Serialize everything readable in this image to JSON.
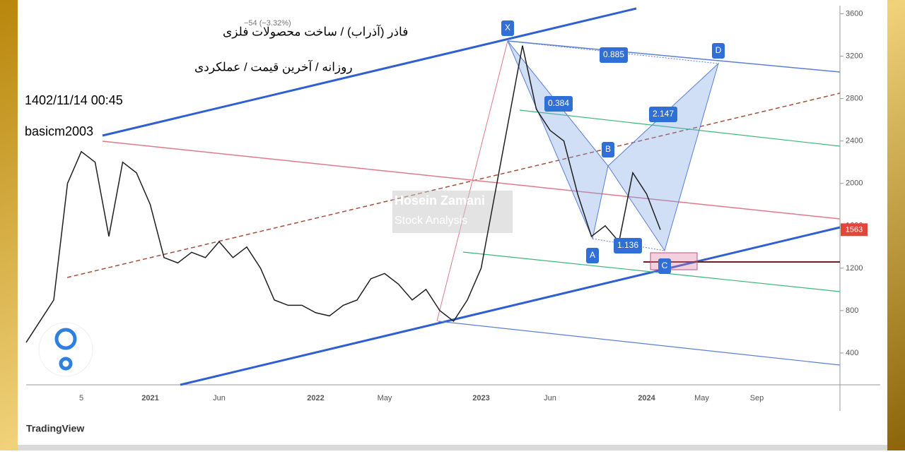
{
  "chart_data": {
    "type": "line",
    "title": "فاذر (آذراب) / ساخت محصولات فلزی",
    "subtitle": "روزانه / آخرین قیمت / عملکردی",
    "timestamp": "1402/11/14 00:45",
    "author": "basicm2003",
    "change": "−54 (−3.32%)",
    "watermark": [
      "Hosein Zamani",
      "Stock Analysis"
    ],
    "brand": "TradingView",
    "pattern_labels": [
      "X",
      "A",
      "B",
      "C",
      "D",
      "0.885",
      "0.384",
      "2.147",
      "1.136"
    ],
    "categories": [
      null,
      null,
      null,
      null,
      "5",
      null,
      null,
      null,
      null,
      "2021",
      null,
      null,
      null,
      null,
      "Jun",
      null,
      null,
      null,
      null,
      null,
      null,
      "2022",
      null,
      null,
      null,
      null,
      "May",
      null,
      null,
      null,
      null,
      null,
      null,
      "2023",
      null,
      null,
      null,
      null,
      "Jun",
      null,
      null,
      null,
      null,
      null,
      null,
      "2024",
      null,
      null,
      null,
      "May",
      null,
      null,
      null,
      "Sep",
      null,
      null,
      null,
      null,
      null,
      null
    ],
    "series": [
      {
        "name": "Close",
        "color": "#1f1f1f",
        "values": [
          500,
          700,
          900,
          2000,
          2300,
          2200,
          1500,
          2200,
          2100,
          1800,
          1300,
          1250,
          1350,
          1300,
          1450,
          1300,
          1400,
          1200,
          900,
          850,
          850,
          780,
          750,
          850,
          900,
          1100,
          1150,
          1050,
          900,
          1000,
          800,
          700,
          900,
          1200,
          1900,
          2600,
          3300,
          2700,
          2500,
          2400,
          1900,
          1500,
          1600,
          1450,
          2100,
          1900,
          1563,
          null,
          null,
          null,
          null,
          null,
          null,
          null,
          null,
          null,
          null,
          null,
          null,
          null
        ]
      }
    ],
    "last_value": 1563,
    "last_value_color": "#e0463c",
    "ylim": [
      100,
      3650
    ],
    "yticks": [
      400,
      800,
      1200,
      1600,
      2000,
      2400,
      2800,
      3200,
      3600
    ]
  }
}
